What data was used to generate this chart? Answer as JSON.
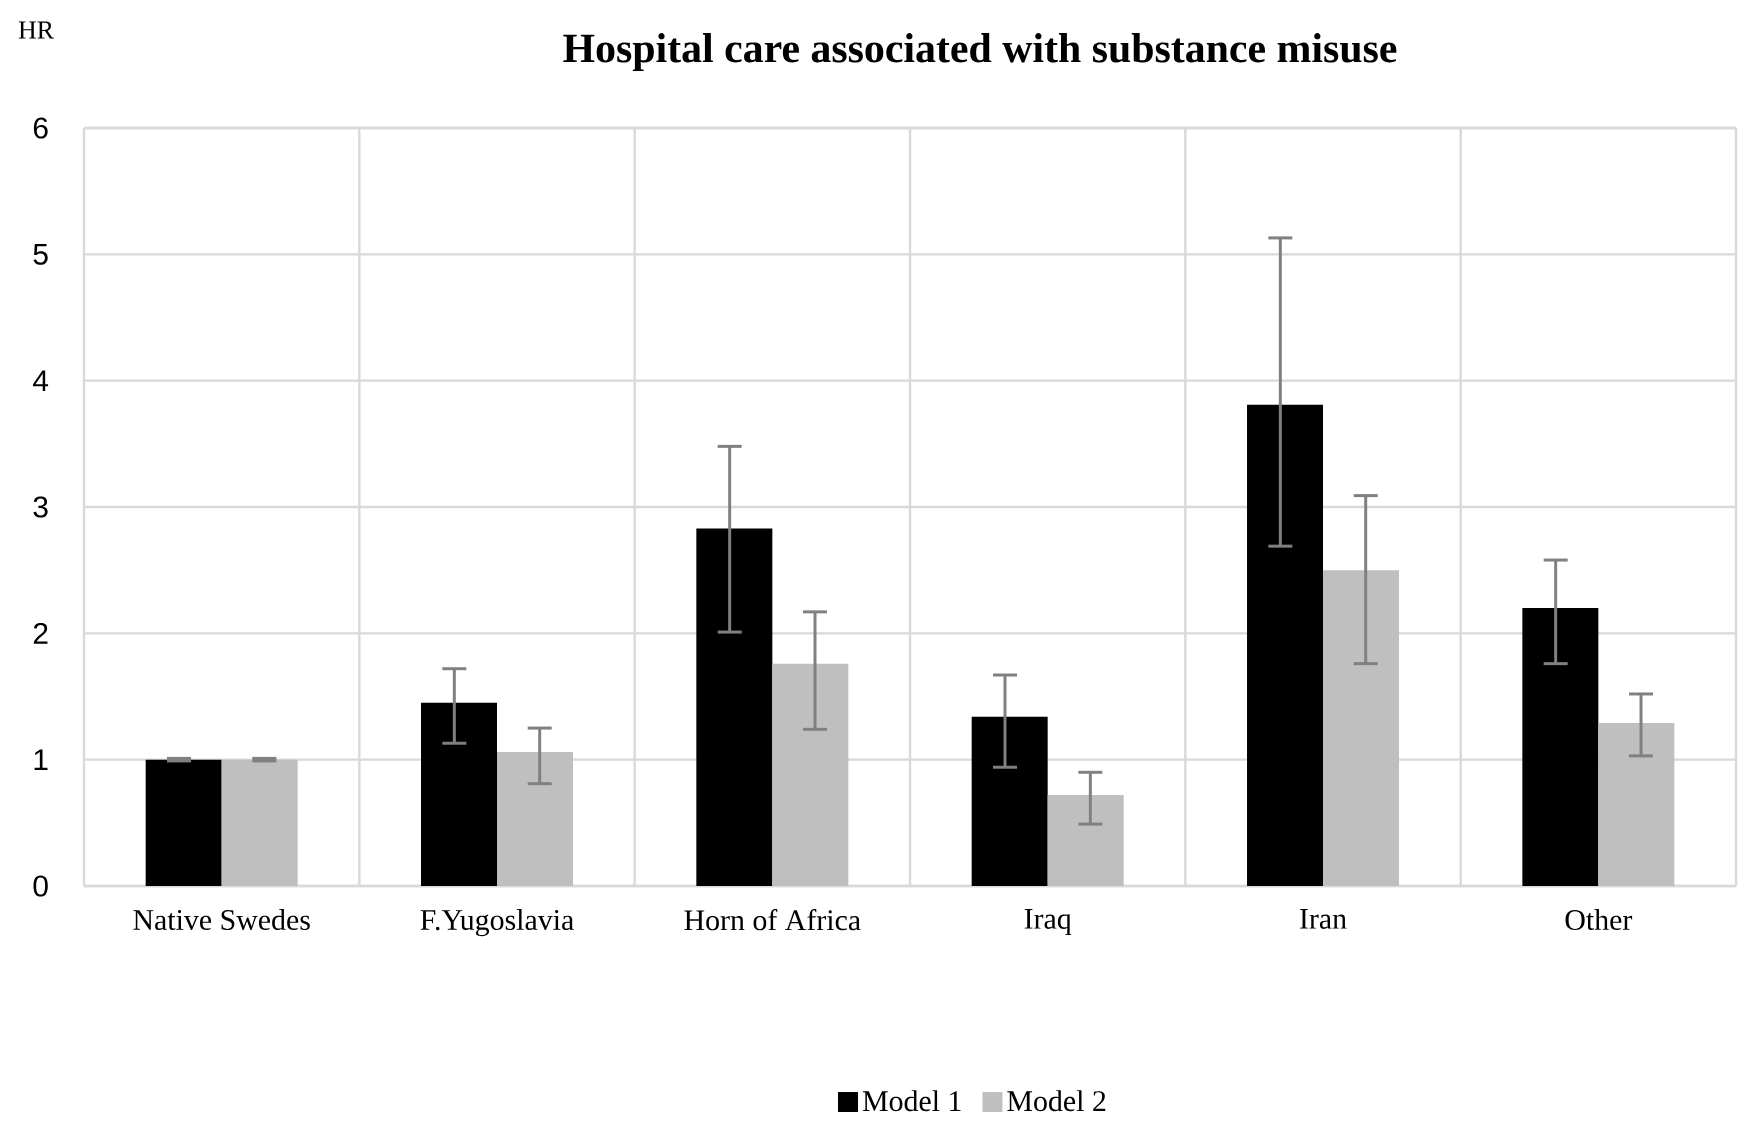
{
  "chart_data": {
    "type": "bar",
    "title": "Hospital care associated with substance misuse",
    "ylabel": "HR",
    "categories": [
      "Native Swedes",
      "F.Yugoslavia",
      "Horn of Africa",
      "Iraq",
      "Iran",
      "Other"
    ],
    "series": [
      {
        "name": "Model 1",
        "color": "#000000",
        "values": [
          1.0,
          1.45,
          2.83,
          1.34,
          3.81,
          2.2
        ],
        "errors": [
          [
            0.99,
            1.01
          ],
          [
            1.13,
            1.72
          ],
          [
            2.01,
            3.48
          ],
          [
            0.94,
            1.67
          ],
          [
            2.69,
            5.13
          ],
          [
            1.76,
            2.58
          ]
        ]
      },
      {
        "name": "Model 2",
        "color": "#bfbfbf",
        "values": [
          1.0,
          1.06,
          1.76,
          0.72,
          2.5,
          1.29
        ],
        "errors": [
          [
            0.99,
            1.01
          ],
          [
            0.81,
            1.25
          ],
          [
            1.24,
            2.17
          ],
          [
            0.49,
            0.9
          ],
          [
            1.76,
            3.09
          ],
          [
            1.03,
            1.52
          ]
        ]
      }
    ],
    "ylim": [
      0,
      6
    ],
    "yticks": [
      0,
      1,
      2,
      3,
      4,
      5,
      6
    ],
    "grid": true,
    "legend": "bottom"
  }
}
